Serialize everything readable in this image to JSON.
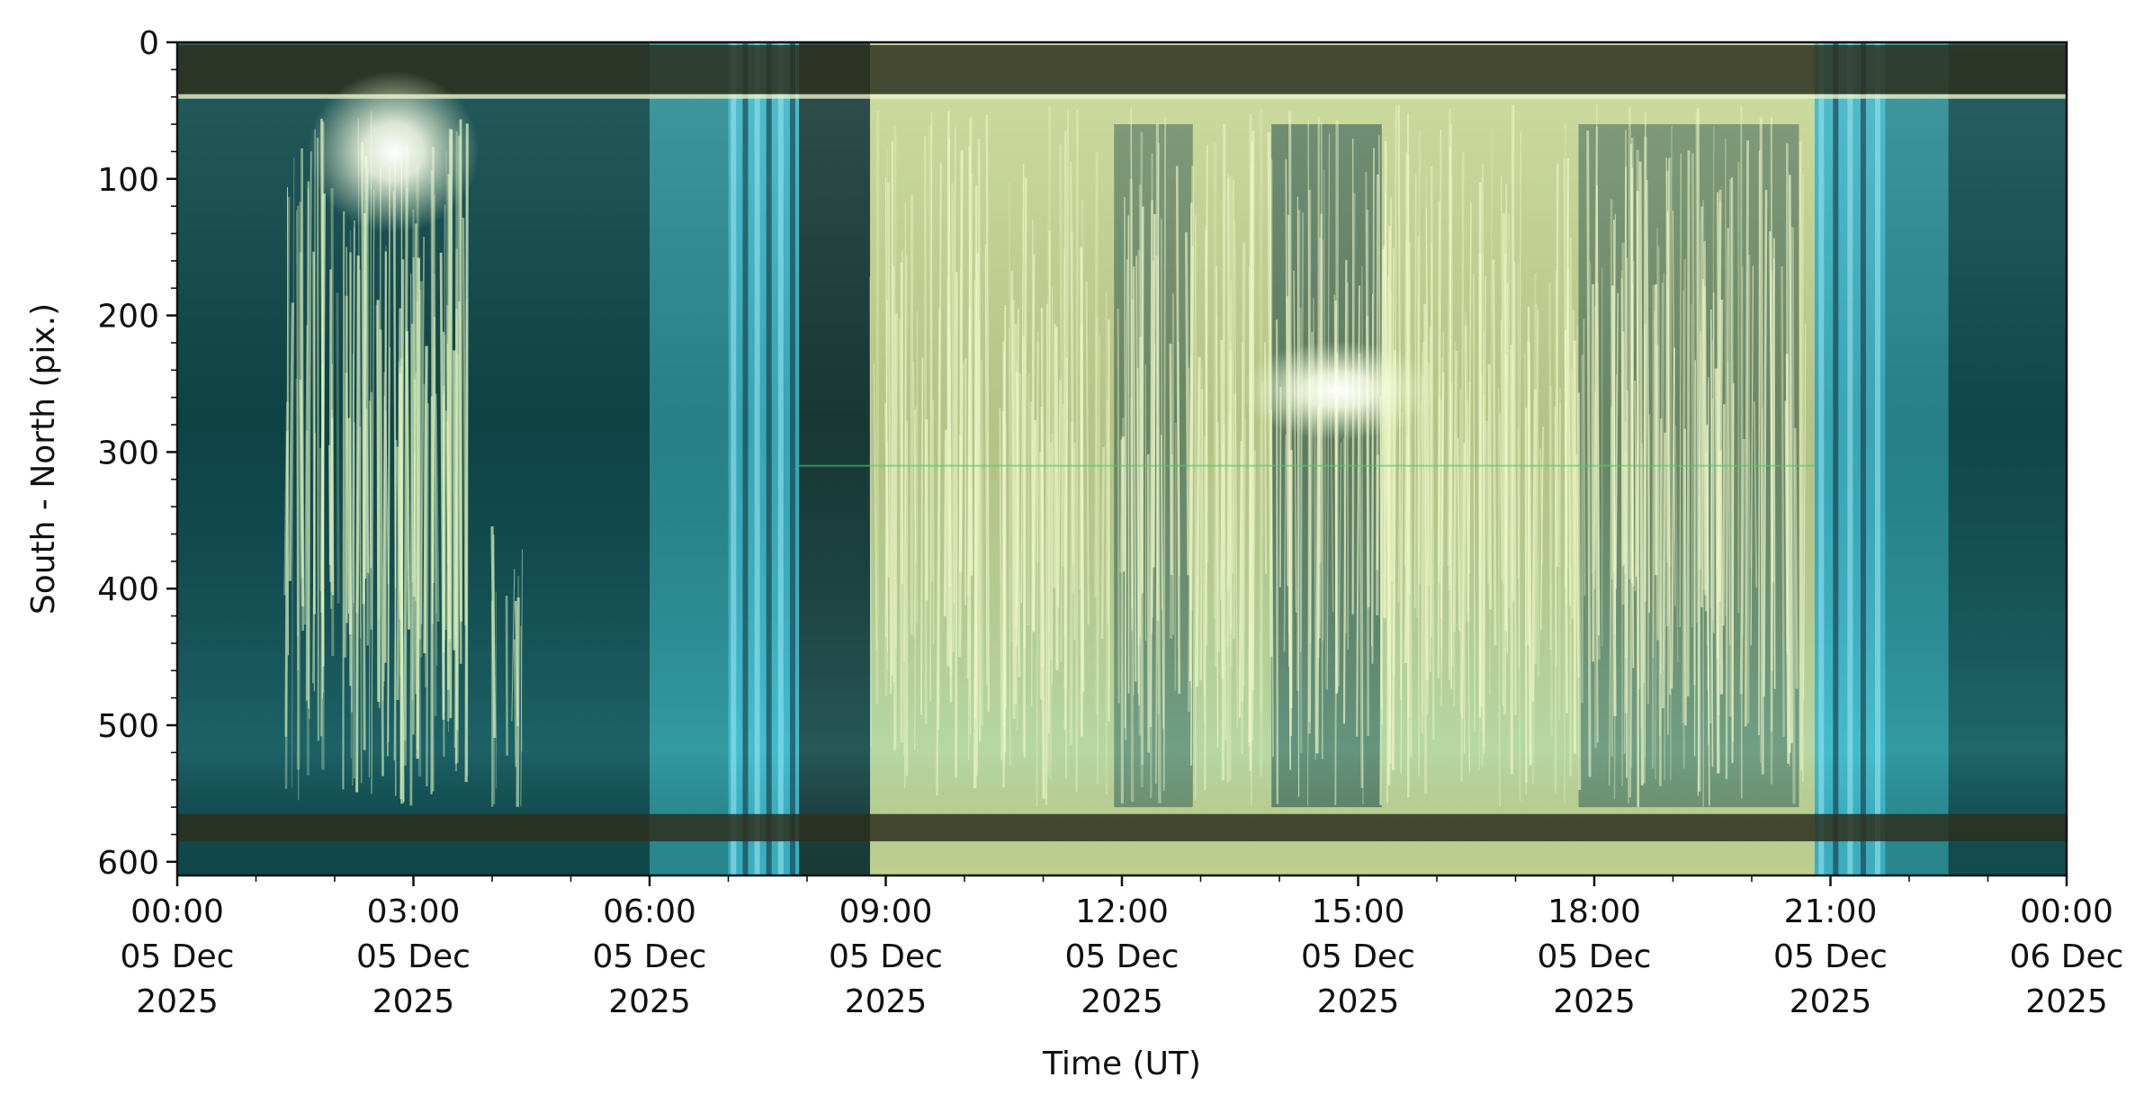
{
  "chart_data": {
    "type": "heatmap",
    "title": "",
    "xlabel": "Time (UT)",
    "ylabel": "South - North (pix.)",
    "xlim": [
      "2025-12-05T00:00",
      "2025-12-06T00:00"
    ],
    "ylim": [
      610,
      0
    ],
    "x_ticks": [
      {
        "time": "2025-12-05T00:00",
        "lines": [
          "00:00",
          "05 Dec",
          "2025"
        ]
      },
      {
        "time": "2025-12-05T03:00",
        "lines": [
          "03:00",
          "05 Dec",
          "2025"
        ]
      },
      {
        "time": "2025-12-05T06:00",
        "lines": [
          "06:00",
          "05 Dec",
          "2025"
        ]
      },
      {
        "time": "2025-12-05T09:00",
        "lines": [
          "09:00",
          "05 Dec",
          "2025"
        ]
      },
      {
        "time": "2025-12-05T12:00",
        "lines": [
          "12:00",
          "05 Dec",
          "2025"
        ]
      },
      {
        "time": "2025-12-05T15:00",
        "lines": [
          "15:00",
          "05 Dec",
          "2025"
        ]
      },
      {
        "time": "2025-12-05T18:00",
        "lines": [
          "18:00",
          "05 Dec",
          "2025"
        ]
      },
      {
        "time": "2025-12-05T21:00",
        "lines": [
          "21:00",
          "05 Dec",
          "2025"
        ]
      },
      {
        "time": "2025-12-06T00:00",
        "lines": [
          "00:00",
          "06 Dec",
          "2025"
        ]
      }
    ],
    "y_ticks": [
      0,
      100,
      200,
      300,
      400,
      500,
      600
    ],
    "colors": {
      "night_teal": "#0f4a4d",
      "twilight_cyan": "#3fb7c9",
      "day_yellow_green": "#c9d996",
      "dark_band": "#2d2f1f",
      "sun_glare": "#ffffff"
    },
    "features": [
      {
        "kind": "horizontal-band",
        "label": "top dark band",
        "y_range": [
          2,
          38
        ]
      },
      {
        "kind": "horizontal-band",
        "label": "bottom dark band",
        "y_range": [
          565,
          585
        ]
      },
      {
        "kind": "twilight",
        "x_range": [
          "2025-12-05T06:00",
          "2025-12-05T07:50"
        ]
      },
      {
        "kind": "twilight",
        "x_range": [
          "2025-12-05T20:50",
          "2025-12-05T22:30"
        ]
      },
      {
        "kind": "bright-streaks",
        "x_range": [
          "2025-12-05T01:25",
          "2025-12-05T03:40"
        ]
      },
      {
        "kind": "bright-streaks",
        "x_range": [
          "2025-12-05T08:00",
          "2025-12-05T20:50"
        ]
      },
      {
        "kind": "glare",
        "x": "2025-12-05T02:45",
        "y": 80
      },
      {
        "kind": "glare",
        "x": "2025-12-05T14:45",
        "y": 255
      }
    ]
  }
}
